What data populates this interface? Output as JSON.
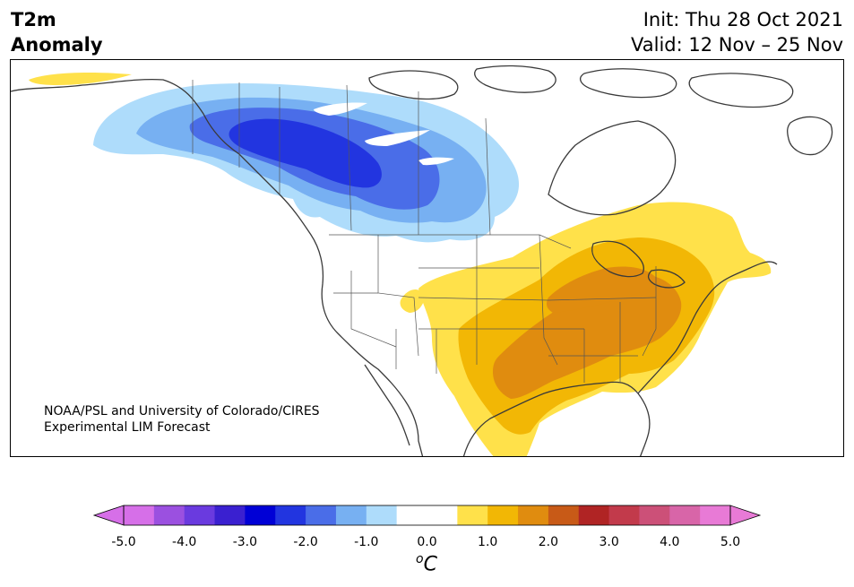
{
  "header": {
    "title_line1": "T2m",
    "title_line2": "Anomaly",
    "init": "Init: Thu 28 Oct 2021",
    "valid": "Valid: 12 Nov – 25 Nov"
  },
  "credit": {
    "line1": "NOAA/PSL and University of Colorado/CIRES",
    "line2": "Experimental LIM Forecast"
  },
  "colorbar": {
    "unit_base": "C",
    "unit_sup": "o",
    "ticks": [
      "-5.0",
      "-4.0",
      "-3.0",
      "-2.0",
      "-1.0",
      "0.0",
      "1.0",
      "2.0",
      "3.0",
      "4.0",
      "5.0"
    ],
    "colors": [
      "#d66fe8",
      "#9b50e0",
      "#6a3adf",
      "#3a20d0",
      "#0000d6",
      "#2235e0",
      "#4a6de8",
      "#77b0f2",
      "#aedcfb",
      "#ffffff",
      "#ffffff",
      "#ffe14a",
      "#f2b705",
      "#e08c0f",
      "#c85a17",
      "#b02424",
      "#c23a4b",
      "#cc5078",
      "#d865a8",
      "#e87ad6"
    ],
    "under_color": "#d66fe8",
    "over_color": "#e87ad6"
  },
  "map": {
    "region": "North America",
    "field": "2m temperature anomaly"
  }
}
